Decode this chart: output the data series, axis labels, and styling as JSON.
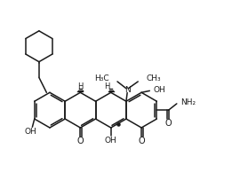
{
  "bg": "#ffffff",
  "lc": "#1a1a1a",
  "lw": 1.1,
  "fs": 6.5,
  "figsize": [
    2.79,
    2.12
  ],
  "dpi": 100,
  "xlim": [
    -0.3,
    10.2
  ],
  "ylim": [
    -0.5,
    8.2
  ]
}
